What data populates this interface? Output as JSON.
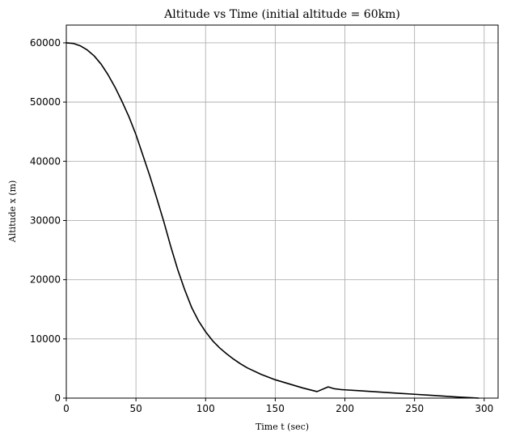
{
  "chart_data": {
    "type": "line",
    "title": "Altitude vs Time (initial altitude = 60km)",
    "xlabel": "Time t (sec)",
    "ylabel": "Altitude x (m)",
    "xlim": [
      0,
      310
    ],
    "ylim": [
      0,
      63000
    ],
    "xticks": [
      0,
      50,
      100,
      150,
      200,
      250,
      300
    ],
    "yticks": [
      0,
      10000,
      20000,
      30000,
      40000,
      50000,
      60000
    ],
    "grid": true,
    "series": [
      {
        "color": "#000000",
        "x": [
          0,
          5,
          10,
          15,
          20,
          25,
          30,
          35,
          40,
          45,
          50,
          55,
          60,
          65,
          70,
          75,
          80,
          85,
          90,
          95,
          100,
          105,
          110,
          115,
          120,
          125,
          130,
          140,
          150,
          160,
          170,
          180,
          188,
          192,
          197,
          200,
          210,
          220,
          230,
          240,
          250,
          260,
          270,
          280,
          290,
          296
        ],
        "y": [
          60000,
          59900,
          59500,
          58800,
          57800,
          56400,
          54600,
          52500,
          50100,
          47500,
          44500,
          41000,
          37500,
          33700,
          29800,
          25600,
          21700,
          18300,
          15300,
          13000,
          11200,
          9700,
          8500,
          7500,
          6600,
          5800,
          5100,
          4000,
          3100,
          2400,
          1700,
          1100,
          1900,
          1600,
          1450,
          1400,
          1250,
          1100,
          950,
          800,
          650,
          500,
          350,
          200,
          80,
          0
        ]
      }
    ]
  }
}
